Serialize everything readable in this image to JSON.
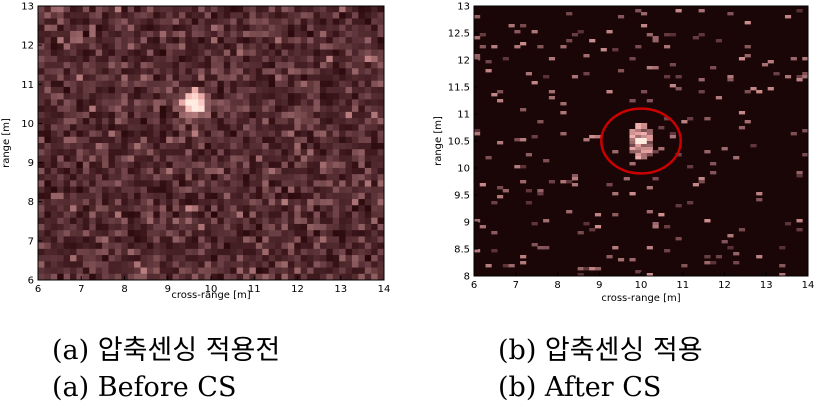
{
  "chart_data": [
    {
      "type": "heatmap",
      "panel": "a",
      "xlabel": "cross-range [m]",
      "ylabel": "range [m]",
      "xlim": [
        6,
        14
      ],
      "ylim": [
        6,
        13
      ],
      "xticks": [
        "6",
        "7",
        "8",
        "9",
        "10",
        "11",
        "12",
        "13",
        "14"
      ],
      "yticks": [
        "6",
        "7",
        "8",
        "9",
        "10",
        "11",
        "12",
        "13"
      ],
      "colormap": "pink",
      "background_level": "noisy",
      "target": {
        "x": 9.6,
        "y": 10.5,
        "intensity": 1.0
      },
      "caption_ko": "(a)  압축센싱  적용전",
      "caption_en": "(a)  Before  CS"
    },
    {
      "type": "heatmap",
      "panel": "b",
      "xlabel": "cross-range [m]",
      "ylabel": "range [m]",
      "xlim": [
        6,
        14
      ],
      "ylim": [
        8,
        13
      ],
      "xticks": [
        "6",
        "7",
        "8",
        "9",
        "10",
        "11",
        "12",
        "13",
        "14"
      ],
      "yticks": [
        "8",
        "8.5",
        "9",
        "9.5",
        "10",
        "10.5",
        "11",
        "11.5",
        "12",
        "12.5",
        "13"
      ],
      "colormap": "pink",
      "background_level": "sparse",
      "target": {
        "x": 10.0,
        "y": 10.5,
        "intensity": 1.0
      },
      "highlight": {
        "type": "circle",
        "center_x": 10.0,
        "center_y": 10.5,
        "color": "#cc0000"
      },
      "caption_ko": "(b)  압축센싱  적용",
      "caption_en": "(b)  After  CS"
    }
  ],
  "colors": {
    "background_dark": "#1a0606",
    "circle": "#cc0000"
  }
}
